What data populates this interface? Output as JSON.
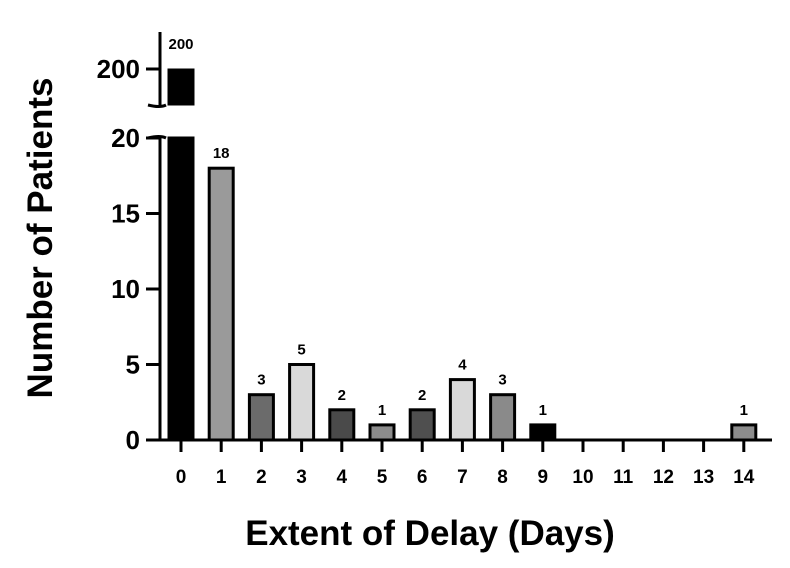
{
  "chart_data": {
    "type": "bar",
    "xlabel": "Extent of Delay (Days)",
    "ylabel": "Number of Patients",
    "categories": [
      "0",
      "1",
      "2",
      "3",
      "4",
      "5",
      "6",
      "7",
      "8",
      "9",
      "10",
      "11",
      "12",
      "13",
      "14"
    ],
    "values": [
      200,
      18,
      3,
      5,
      2,
      1,
      2,
      4,
      3,
      1,
      0,
      0,
      0,
      0,
      1
    ],
    "data_labels": [
      "200",
      "18",
      "3",
      "5",
      "2",
      "1",
      "2",
      "4",
      "3",
      "1",
      "",
      "",
      "",
      "",
      "1"
    ],
    "bar_colors": [
      "#000000",
      "#9a9a9a",
      "#6b6b6b",
      "#d9d9d9",
      "#4a4a4a",
      "#8c8c8c",
      "#4f4f4f",
      "#d9d9d9",
      "#8a8a8a",
      "#000000",
      "#ffffff",
      "#ffffff",
      "#ffffff",
      "#ffffff",
      "#8c8c8c"
    ],
    "y_axis_break": {
      "lower_range": [
        0,
        20
      ],
      "upper_tick": 200
    },
    "yticks_lower": [
      "0",
      "5",
      "10",
      "15",
      "20"
    ],
    "yticks_upper": [
      "200"
    ],
    "grid": false,
    "legend": "none"
  }
}
